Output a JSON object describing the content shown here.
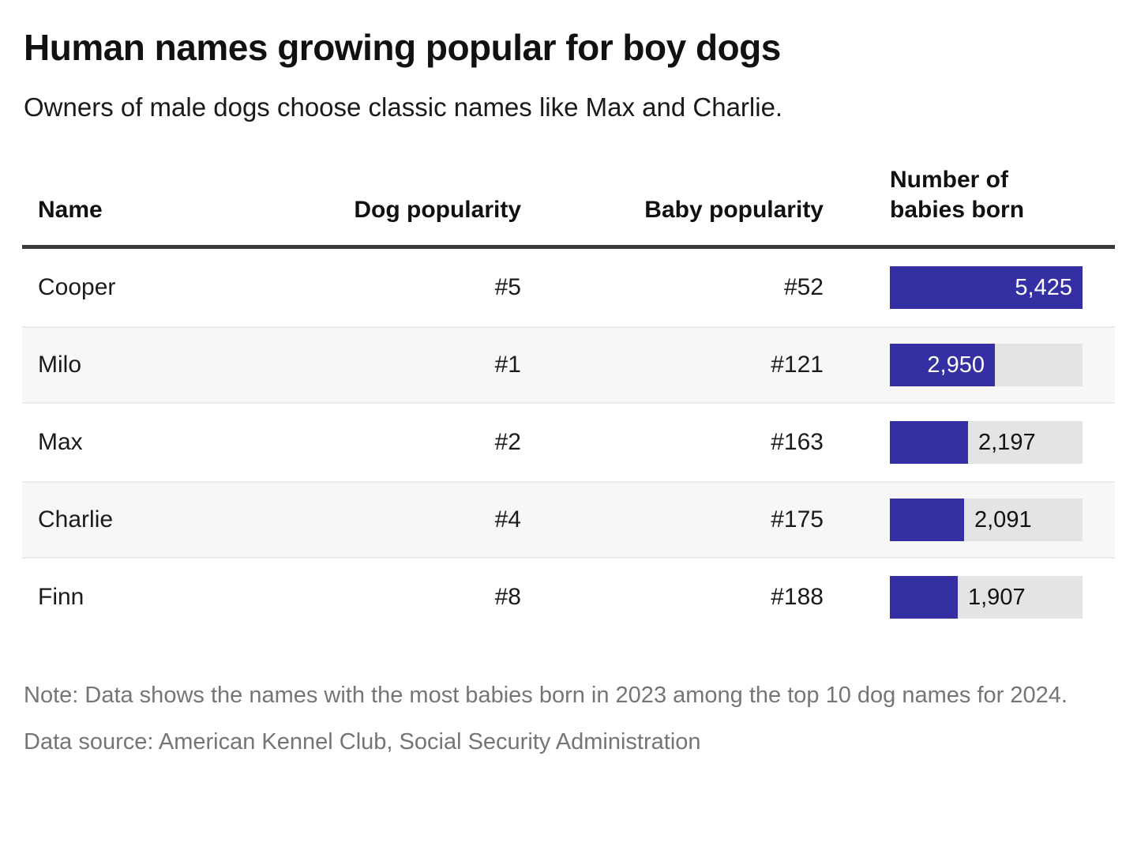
{
  "header": {
    "title": "Human names growing popular for boy dogs",
    "subtitle": "Owners of male dogs choose classic names like Max and Charlie."
  },
  "table": {
    "columns": {
      "name": "Name",
      "dog_popularity": "Dog popularity",
      "baby_popularity": "Baby popularity",
      "babies_born": "Number of babies born"
    },
    "rows": [
      {
        "name": "Cooper",
        "dog_popularity": "#5",
        "baby_popularity": "#52",
        "babies_born": 5425,
        "babies_born_label": "5,425"
      },
      {
        "name": "Milo",
        "dog_popularity": "#1",
        "baby_popularity": "#121",
        "babies_born": 2950,
        "babies_born_label": "2,950"
      },
      {
        "name": "Max",
        "dog_popularity": "#2",
        "baby_popularity": "#163",
        "babies_born": 2197,
        "babies_born_label": "2,197"
      },
      {
        "name": "Charlie",
        "dog_popularity": "#4",
        "baby_popularity": "#175",
        "babies_born": 2091,
        "babies_born_label": "2,091"
      },
      {
        "name": "Finn",
        "dog_popularity": "#8",
        "baby_popularity": "#188",
        "babies_born": 1907,
        "babies_born_label": "1,907"
      }
    ]
  },
  "chart_data": {
    "type": "bar",
    "title": "Number of babies born",
    "categories": [
      "Cooper",
      "Milo",
      "Max",
      "Charlie",
      "Finn"
    ],
    "values": [
      5425,
      2950,
      2197,
      2091,
      1907
    ],
    "value_labels": [
      "5,425",
      "2,950",
      "2,197",
      "2,091",
      "1,907"
    ],
    "series_meta": {
      "dog_popularity": [
        "#5",
        "#1",
        "#2",
        "#4",
        "#8"
      ],
      "baby_popularity": [
        "#52",
        "#121",
        "#163",
        "#175",
        "#188"
      ]
    },
    "xlabel": "",
    "ylabel": "Number of babies born",
    "xlim": [
      0,
      5425
    ],
    "orientation": "horizontal",
    "grid": false,
    "legend": false
  },
  "footer": {
    "note": "Note: Data shows the names with the most babies born in 2023 among the top 10 dog names for 2024.",
    "source": "Data source: American Kennel Club, Social Security Administration"
  },
  "colors": {
    "bar": "#3430a3",
    "bar_track": "#e4e4e4",
    "stripe": "#f7f7f7",
    "header_rule": "#3a3a3a",
    "footer_text": "#757575",
    "text": "#1a1a1a"
  }
}
